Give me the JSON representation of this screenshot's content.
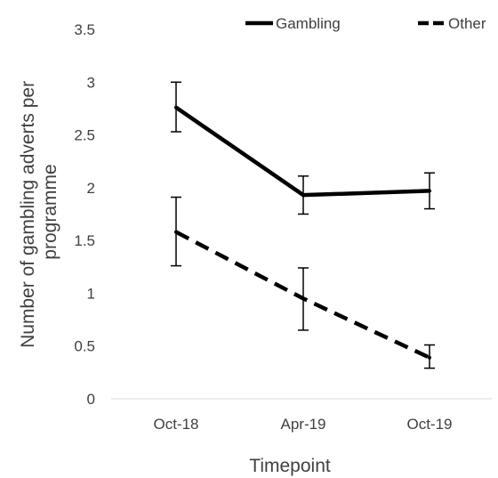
{
  "chart_data": {
    "type": "line",
    "title": "",
    "xlabel": "Timepoint",
    "ylabel": "Number of gambling adverts per programme",
    "ylim": [
      0,
      3.5
    ],
    "ytick_step": 0.5,
    "categories": [
      "Oct-18",
      "Apr-19",
      "Oct-19"
    ],
    "legend_position": "top-right",
    "grid": false,
    "series": [
      {
        "name": "Gambling",
        "style": "solid",
        "color": "#000000",
        "values": [
          2.76,
          1.93,
          1.97
        ],
        "error_low": [
          2.53,
          1.75,
          1.8
        ],
        "error_high": [
          3.0,
          2.11,
          2.14
        ]
      },
      {
        "name": "Other",
        "style": "dashed",
        "color": "#000000",
        "values": [
          1.58,
          0.95,
          0.39
        ],
        "error_low": [
          1.26,
          0.65,
          0.29
        ],
        "error_high": [
          1.91,
          1.24,
          0.51
        ]
      }
    ]
  }
}
